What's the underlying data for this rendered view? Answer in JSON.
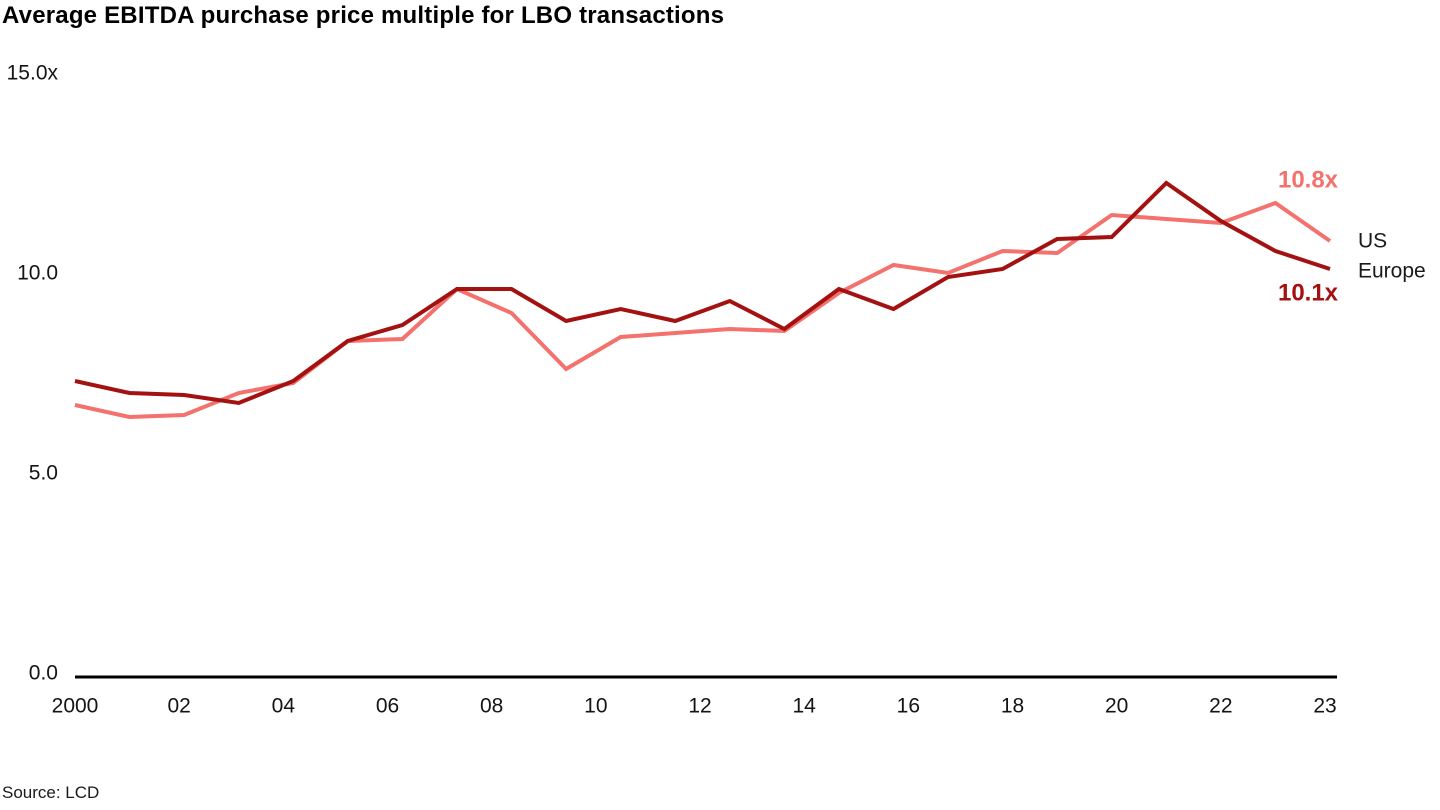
{
  "title": "Average EBITDA purchase price multiple for LBO transactions",
  "source": "Source: LCD",
  "chart_data": {
    "type": "line",
    "x": [
      2000,
      2001,
      2002,
      2003,
      2004,
      2005,
      2006,
      2007,
      2008,
      2009,
      2010,
      2011,
      2012,
      2013,
      2014,
      2015,
      2016,
      2017,
      2018,
      2019,
      2020,
      2021,
      2022,
      2023
    ],
    "x_tick_labels": [
      "2000",
      "02",
      "04",
      "06",
      "08",
      "10",
      "12",
      "14",
      "16",
      "18",
      "20",
      "22",
      "23"
    ],
    "y_ticks": [
      {
        "value": 15,
        "label": "15.0x"
      },
      {
        "value": 10,
        "label": "10.0"
      },
      {
        "value": 5,
        "label": "5.0"
      },
      {
        "value": 0,
        "label": "0.0"
      }
    ],
    "ylim": [
      0,
      15
    ],
    "grid": false,
    "legend_position": "right-of-line-ends",
    "series": [
      {
        "name": "US",
        "color": "#f4726d",
        "end_label": "10.8x",
        "values": [
          6.7,
          6.4,
          6.45,
          7.0,
          7.25,
          8.3,
          8.35,
          9.6,
          9.0,
          7.6,
          8.4,
          8.5,
          8.6,
          8.55,
          9.5,
          10.2,
          10.0,
          10.55,
          10.5,
          11.45,
          11.35,
          11.25,
          11.75,
          10.8
        ]
      },
      {
        "name": "Europe",
        "color": "#a41111",
        "end_label": "10.1x",
        "values": [
          7.3,
          7.0,
          6.95,
          6.75,
          7.3,
          8.3,
          8.7,
          9.6,
          9.6,
          8.8,
          9.1,
          8.8,
          9.3,
          8.6,
          9.6,
          9.1,
          9.9,
          10.1,
          10.85,
          10.9,
          12.25,
          11.3,
          10.55,
          10.1
        ]
      }
    ]
  }
}
